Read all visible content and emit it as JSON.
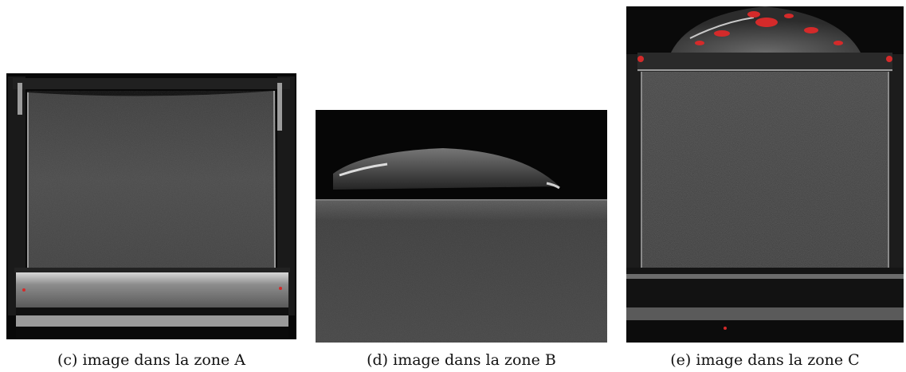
{
  "figures": [
    {
      "caption": "(c) image dans la zone A"
    },
    {
      "caption": "(d) image dans la zone B"
    },
    {
      "caption": "(e) image dans la zone C"
    }
  ],
  "colors": {
    "background": "#ffffff",
    "specimen_gray": "#4a4a4a",
    "photo_black": "#050505",
    "highlight_red": "#d42a2a"
  }
}
